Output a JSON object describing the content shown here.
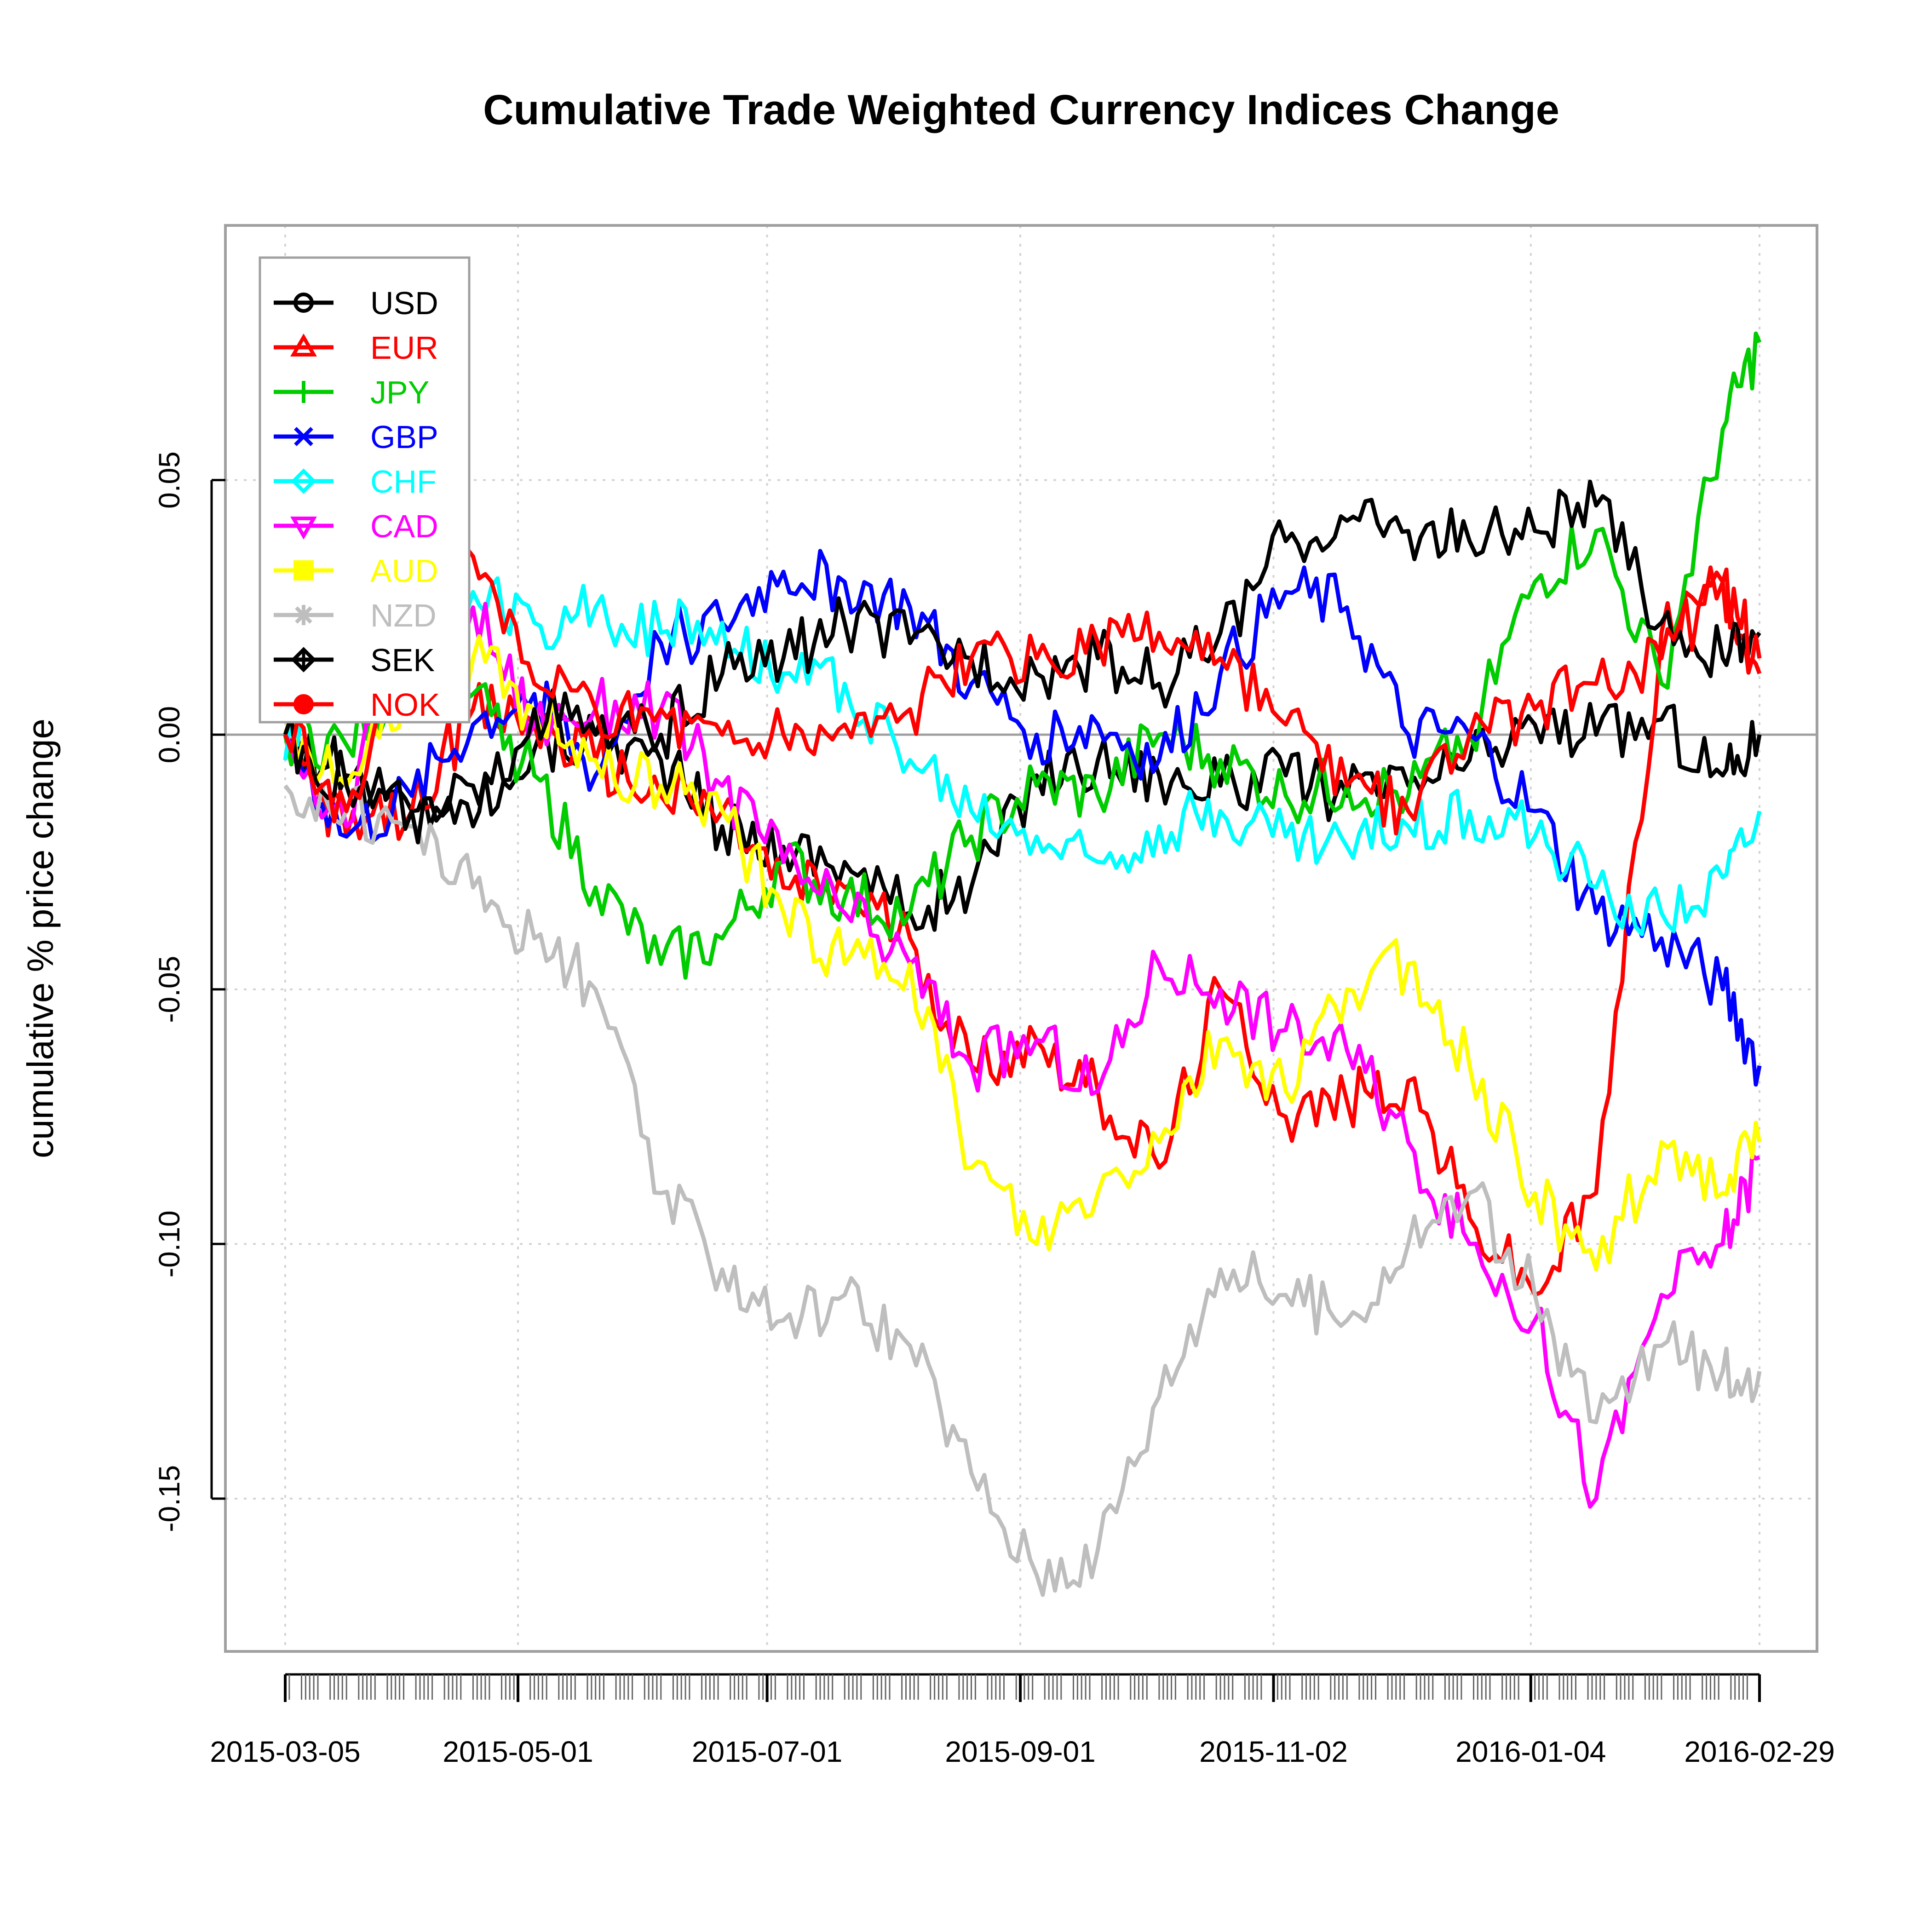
{
  "chart_data": {
    "type": "line",
    "title": "Cumulative Trade Weighted Currency Indices Change",
    "ylabel": "cumulative % price change",
    "xlabel": "",
    "x_tick_labels": [
      "2015-03-05",
      "2015-05-01",
      "2015-07-01",
      "2015-09-01",
      "2015-11-02",
      "2016-01-04",
      "2016-02-29"
    ],
    "y_ticks": [
      -0.15,
      -0.1,
      -0.05,
      0.0,
      0.05
    ],
    "y_tick_labels": [
      "-0.15",
      "-0.10",
      "-0.05",
      "0.00",
      "0.05"
    ],
    "ylim": [
      -0.18,
      0.1
    ],
    "grid": true,
    "legend_position": "top-left",
    "x_dates": [
      "2015-03-05",
      "2015-03-20",
      "2015-04-05",
      "2015-04-20",
      "2015-05-05",
      "2015-05-20",
      "2015-06-05",
      "2015-06-20",
      "2015-07-05",
      "2015-07-20",
      "2015-08-05",
      "2015-08-20",
      "2015-09-05",
      "2015-09-20",
      "2015-10-05",
      "2015-10-20",
      "2015-11-05",
      "2015-11-20",
      "2015-12-05",
      "2015-12-20",
      "2016-01-05",
      "2016-01-20",
      "2016-02-05",
      "2016-02-20",
      "2016-02-29"
    ],
    "series": [
      {
        "name": "USD",
        "color": "#000000",
        "marker": "circle",
        "values": [
          0.0,
          -0.008,
          -0.015,
          -0.01,
          -0.003,
          0.0,
          -0.005,
          -0.018,
          -0.022,
          -0.025,
          -0.035,
          -0.03,
          -0.008,
          -0.005,
          -0.008,
          -0.01,
          -0.008,
          -0.012,
          -0.01,
          -0.005,
          0.002,
          0.0,
          0.003,
          -0.008,
          0.0
        ]
      },
      {
        "name": "EUR",
        "color": "#ff0000",
        "marker": "triangle",
        "values": [
          0.0,
          -0.02,
          -0.015,
          0.005,
          0.002,
          -0.005,
          -0.012,
          -0.015,
          -0.03,
          -0.03,
          -0.04,
          -0.065,
          -0.06,
          -0.07,
          -0.085,
          -0.05,
          -0.075,
          -0.072,
          -0.068,
          -0.095,
          -0.11,
          -0.09,
          0.02,
          0.03,
          0.012
        ]
      },
      {
        "name": "JPY",
        "color": "#00cc00",
        "marker": "plus",
        "values": [
          0.0,
          -0.002,
          0.012,
          0.008,
          -0.008,
          -0.03,
          -0.045,
          -0.04,
          -0.025,
          -0.032,
          -0.035,
          -0.02,
          -0.01,
          -0.012,
          0.0,
          -0.005,
          -0.012,
          -0.01,
          -0.012,
          0.0,
          0.03,
          0.04,
          0.01,
          0.06,
          0.077
        ]
      },
      {
        "name": "GBP",
        "color": "#0000ff",
        "marker": "x",
        "values": [
          0.0,
          -0.02,
          -0.012,
          0.002,
          0.008,
          -0.008,
          0.018,
          0.022,
          0.032,
          0.03,
          0.025,
          0.01,
          0.0,
          0.002,
          -0.005,
          0.012,
          0.028,
          0.025,
          0.0,
          0.0,
          -0.015,
          -0.035,
          -0.04,
          -0.05,
          -0.065
        ]
      },
      {
        "name": "CHF",
        "color": "#00ffff",
        "marker": "diamond",
        "values": [
          -0.005,
          0.02,
          0.025,
          0.028,
          0.022,
          0.025,
          0.02,
          0.022,
          0.012,
          0.01,
          -0.005,
          -0.015,
          -0.02,
          -0.025,
          -0.018,
          -0.015,
          -0.02,
          -0.022,
          -0.018,
          -0.015,
          -0.02,
          -0.03,
          -0.035,
          -0.028,
          -0.015
        ]
      },
      {
        "name": "CAD",
        "color": "#ff00ff",
        "marker": "triangle-down",
        "values": [
          0.0,
          -0.018,
          0.03,
          0.025,
          0.002,
          0.005,
          0.005,
          -0.01,
          -0.025,
          -0.035,
          -0.045,
          -0.065,
          -0.06,
          -0.07,
          -0.045,
          -0.05,
          -0.058,
          -0.062,
          -0.08,
          -0.1,
          -0.115,
          -0.15,
          -0.11,
          -0.1,
          -0.083
        ]
      },
      {
        "name": "AUD",
        "color": "#ffff00",
        "marker": "square",
        "values": [
          0.0,
          -0.01,
          0.01,
          0.015,
          0.005,
          -0.005,
          -0.01,
          -0.015,
          -0.035,
          -0.045,
          -0.045,
          -0.085,
          -0.1,
          -0.09,
          -0.08,
          -0.06,
          -0.07,
          -0.05,
          -0.045,
          -0.065,
          -0.09,
          -0.105,
          -0.08,
          -0.09,
          -0.08
        ]
      },
      {
        "name": "NZD",
        "color": "#bebebe",
        "marker": "asterisk",
        "values": [
          -0.01,
          -0.015,
          -0.018,
          -0.03,
          -0.04,
          -0.05,
          -0.09,
          -0.105,
          -0.115,
          -0.11,
          -0.12,
          -0.145,
          -0.165,
          -0.16,
          -0.13,
          -0.105,
          -0.11,
          -0.115,
          -0.1,
          -0.09,
          -0.11,
          -0.135,
          -0.12,
          -0.125,
          -0.125
        ]
      },
      {
        "name": "SEK",
        "color": "#000000",
        "marker": "diamond-plus",
        "values": [
          0.0,
          -0.01,
          -0.015,
          -0.018,
          0.005,
          0.0,
          0.0,
          0.012,
          0.015,
          0.022,
          0.018,
          0.015,
          0.012,
          0.015,
          0.01,
          0.02,
          0.038,
          0.042,
          0.04,
          0.038,
          0.04,
          0.045,
          0.022,
          0.015,
          0.02
        ]
      },
      {
        "name": "NOK",
        "color": "#ff0000",
        "marker": "circle-filled",
        "values": [
          0.0,
          -0.015,
          0.02,
          0.035,
          0.01,
          0.005,
          0.005,
          0.0,
          0.0,
          0.002,
          0.005,
          0.015,
          0.015,
          0.018,
          0.02,
          0.015,
          0.002,
          -0.01,
          -0.015,
          0.0,
          0.005,
          0.01,
          0.015,
          0.03,
          0.015
        ]
      }
    ]
  }
}
